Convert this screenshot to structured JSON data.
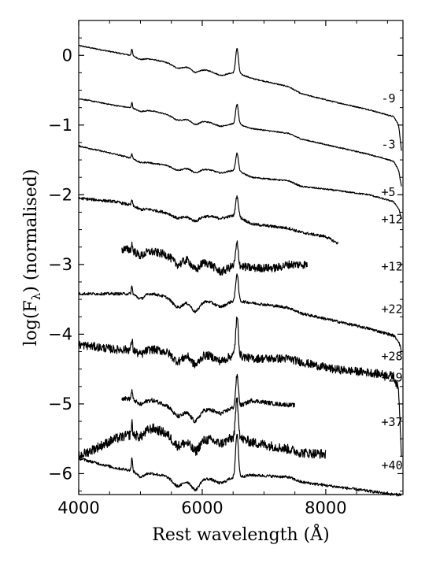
{
  "chart_data": {
    "type": "line",
    "title": "",
    "xlabel": "Rest wavelength (Å)",
    "ylabel": "log(F",
    "ylabel_sub": "λ",
    "ylabel_suffix": ") (normalised)",
    "xlim": [
      4000,
      9250
    ],
    "ylim": [
      -6.3,
      0.5
    ],
    "xticks": [
      4000,
      6000,
      8000
    ],
    "xtick_labels": [
      "4000",
      "6000",
      "8000"
    ],
    "yticks": [
      0,
      -1,
      -2,
      -3,
      -4,
      -5,
      -6
    ],
    "ytick_labels": [
      "0",
      "−1",
      "−2",
      "−3",
      "−4",
      "−5",
      "−6"
    ],
    "grid": false,
    "series": [
      {
        "name": "-9",
        "label": "-9",
        "label_x": 8900,
        "label_y": -0.62,
        "x": [
          4000,
          4600,
          5200,
          5800,
          6300,
          6563,
          6800,
          7400,
          7600,
          8100,
          8700,
          9100,
          9180,
          9230
        ],
        "y": [
          0.14,
          0.04,
          -0.06,
          -0.17,
          -0.25,
          -0.25,
          -0.33,
          -0.45,
          -0.55,
          -0.66,
          -0.78,
          -0.88,
          -1.0,
          -1.4
        ]
      },
      {
        "name": "-3",
        "label": "-3",
        "label_x": 8900,
        "label_y": -1.28,
        "x": [
          4000,
          4600,
          5200,
          5800,
          6300,
          6563,
          6800,
          7400,
          7600,
          8100,
          8700,
          9100,
          9180,
          9230
        ],
        "y": [
          -0.62,
          -0.72,
          -0.8,
          -0.92,
          -0.98,
          -0.98,
          -1.05,
          -1.12,
          -1.2,
          -1.3,
          -1.42,
          -1.52,
          -1.65,
          -1.9
        ]
      },
      {
        "name": "+5",
        "label": "+5",
        "label_x": 8900,
        "label_y": -1.96,
        "x": [
          4000,
          4600,
          5200,
          5800,
          6300,
          6563,
          6800,
          7400,
          7600,
          8100,
          8700,
          9100,
          9180,
          9230
        ],
        "y": [
          -1.3,
          -1.42,
          -1.55,
          -1.62,
          -1.65,
          -1.65,
          -1.75,
          -1.8,
          -1.88,
          -1.93,
          -2.0,
          -2.1,
          -2.2,
          -2.35
        ]
      },
      {
        "name": "+12a",
        "label": "+12",
        "label_x": 8900,
        "label_y": -2.35,
        "x": [
          4000,
          4600,
          5200,
          5800,
          6300,
          6563,
          6800,
          7400,
          7600,
          8000,
          8100,
          8200
        ],
        "y": [
          -2.05,
          -2.1,
          -2.22,
          -2.32,
          -2.3,
          -2.3,
          -2.42,
          -2.48,
          -2.54,
          -2.6,
          -2.65,
          -2.7
        ]
      },
      {
        "name": "+12b",
        "label": "+12",
        "label_x": 8900,
        "label_y": -3.03,
        "x": [
          4700,
          5200,
          5800,
          6300,
          6563,
          6800,
          7200,
          7400,
          7600,
          7700
        ],
        "y": [
          -2.78,
          -2.82,
          -2.92,
          -3.02,
          -3.02,
          -3.05,
          -3.05,
          -3.0,
          -3.0,
          -3.0
        ]
      },
      {
        "name": "+22",
        "label": "+22",
        "label_x": 8900,
        "label_y": -3.64,
        "x": [
          4000,
          4600,
          5200,
          5800,
          6300,
          6563,
          6800,
          7400,
          7600,
          8100,
          8700,
          9100,
          9180,
          9230
        ],
        "y": [
          -3.42,
          -3.42,
          -3.42,
          -3.54,
          -3.52,
          -3.52,
          -3.55,
          -3.62,
          -3.7,
          -3.8,
          -3.92,
          -4.02,
          -4.1,
          -4.25
        ]
      },
      {
        "name": "+28",
        "label": "+28",
        "label_x": 8900,
        "label_y": -4.32,
        "x": [
          4000,
          4600,
          5200,
          5800,
          6300,
          6563,
          6800,
          7400,
          7600,
          8100,
          8700,
          9100,
          9180,
          9230
        ],
        "y": [
          -4.15,
          -4.22,
          -4.22,
          -4.3,
          -4.3,
          -4.3,
          -4.35,
          -4.35,
          -4.4,
          -4.5,
          -4.55,
          -4.6,
          -4.8,
          -5.8
        ]
      },
      {
        "name": "+29",
        "label": "+29",
        "label_x": 8900,
        "label_y": -4.62,
        "x": [
          4700,
          5200,
          5800,
          6300,
          6563,
          6800,
          7200,
          7500
        ],
        "y": [
          -4.92,
          -4.95,
          -5.12,
          -5.05,
          -5.05,
          -4.95,
          -5.0,
          -5.02
        ]
      },
      {
        "name": "+37",
        "label": "+37",
        "label_x": 8900,
        "label_y": -5.26,
        "x": [
          4000,
          4600,
          5200,
          5800,
          6300,
          6563,
          6800,
          7400,
          7600,
          8000
        ],
        "y": [
          -5.75,
          -5.5,
          -5.35,
          -5.55,
          -5.48,
          -5.48,
          -5.55,
          -5.65,
          -5.7,
          -5.72
        ]
      },
      {
        "name": "+40",
        "label": "+40",
        "label_x": 8900,
        "label_y": -5.88,
        "x": [
          4000,
          4600,
          5200,
          5800,
          6300,
          6563,
          6800,
          7400,
          7600,
          8100,
          8700,
          9100,
          9230
        ],
        "y": [
          -5.78,
          -5.92,
          -6.0,
          -6.1,
          -6.05,
          -6.05,
          -6.02,
          -6.05,
          -6.12,
          -6.18,
          -6.25,
          -6.3,
          -6.3
        ]
      }
    ]
  }
}
